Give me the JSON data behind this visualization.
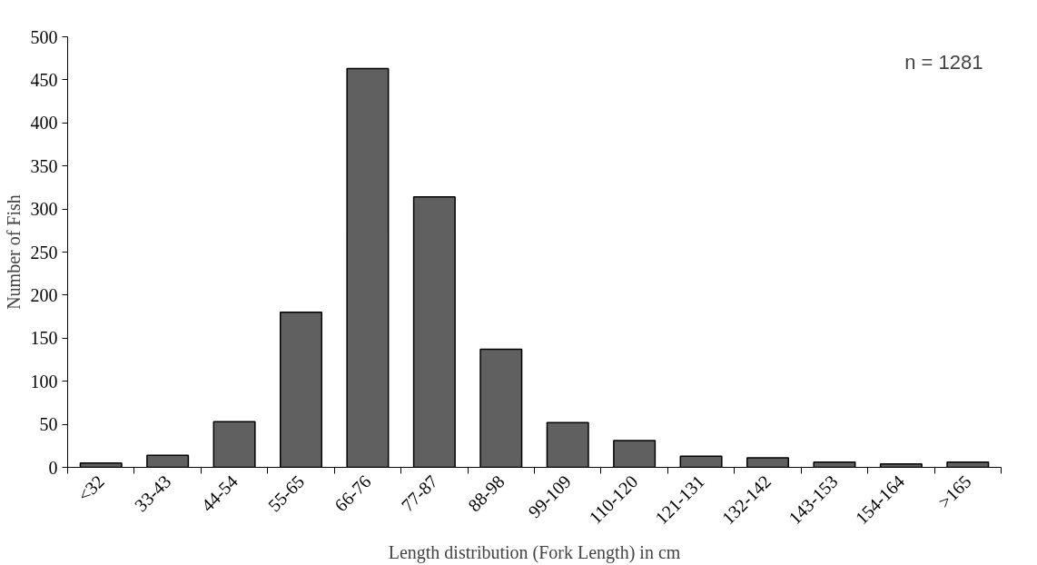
{
  "chart_data": {
    "type": "bar",
    "xlabel": "Length distribution (Fork Length) in cm",
    "ylabel": "Number of Fish",
    "categories": [
      "<32",
      "33-43",
      "44-54",
      "55-65",
      "66-76",
      "77-87",
      "88-98",
      "99-109",
      "110-120",
      "121-131",
      "132-142",
      "143-153",
      "154-164",
      ">165"
    ],
    "values": [
      5,
      14,
      53,
      180,
      463,
      314,
      137,
      52,
      31,
      13,
      11,
      6,
      4,
      6
    ],
    "color": "#606060",
    "ylim": [
      0,
      500
    ],
    "yticks": [
      0,
      50,
      100,
      150,
      200,
      250,
      300,
      350,
      400,
      450,
      500
    ],
    "grid": false,
    "annotations": [
      "n = 1281"
    ]
  }
}
